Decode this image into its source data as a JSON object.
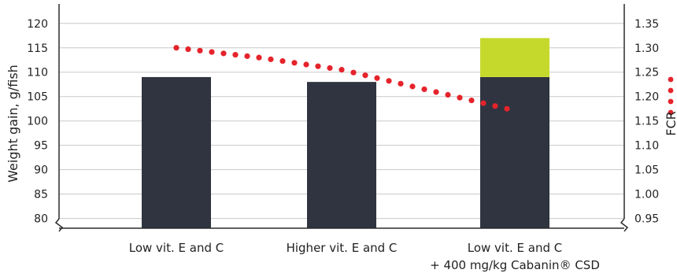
{
  "chart_data": {
    "type": "bar",
    "categories": [
      [
        "Low vit. E and C"
      ],
      [
        "Higher vit. E and C"
      ],
      [
        "Low vit. E and C",
        "+ 400 mg/kg Cabanin® CSD"
      ]
    ],
    "series": [
      {
        "values": [
          109,
          108,
          109
        ]
      },
      {
        "values": [
          0,
          0,
          8
        ]
      }
    ],
    "line_series": {
      "type": "line",
      "style": "dotted",
      "axis": "right",
      "x": [
        0,
        0.5,
        1,
        1.5,
        2
      ],
      "values": [
        1.3,
        1.28,
        1.255,
        1.215,
        1.175
      ]
    },
    "ylabel": "Weight gain, g/fish",
    "ylabel_right": "FCR",
    "y_ticks": [
      120,
      115,
      110,
      105,
      100,
      95,
      90,
      85,
      80
    ],
    "y_ticks_right": [
      "1.35",
      "1.30",
      "1.25",
      "1.20",
      "1.15",
      "1.10",
      "1.05",
      "1.00",
      "0.95"
    ],
    "ylim": [
      78,
      124
    ],
    "ylim_right": [
      0.93,
      1.39
    ],
    "grid": true,
    "axis_break": true,
    "legend": "right",
    "colors": {
      "bar_base": "#2f3440",
      "bar_top": "#c5d92c",
      "line": "#e5232b",
      "grid": "#c8c8c8",
      "axis": "#2b2b2b"
    }
  }
}
